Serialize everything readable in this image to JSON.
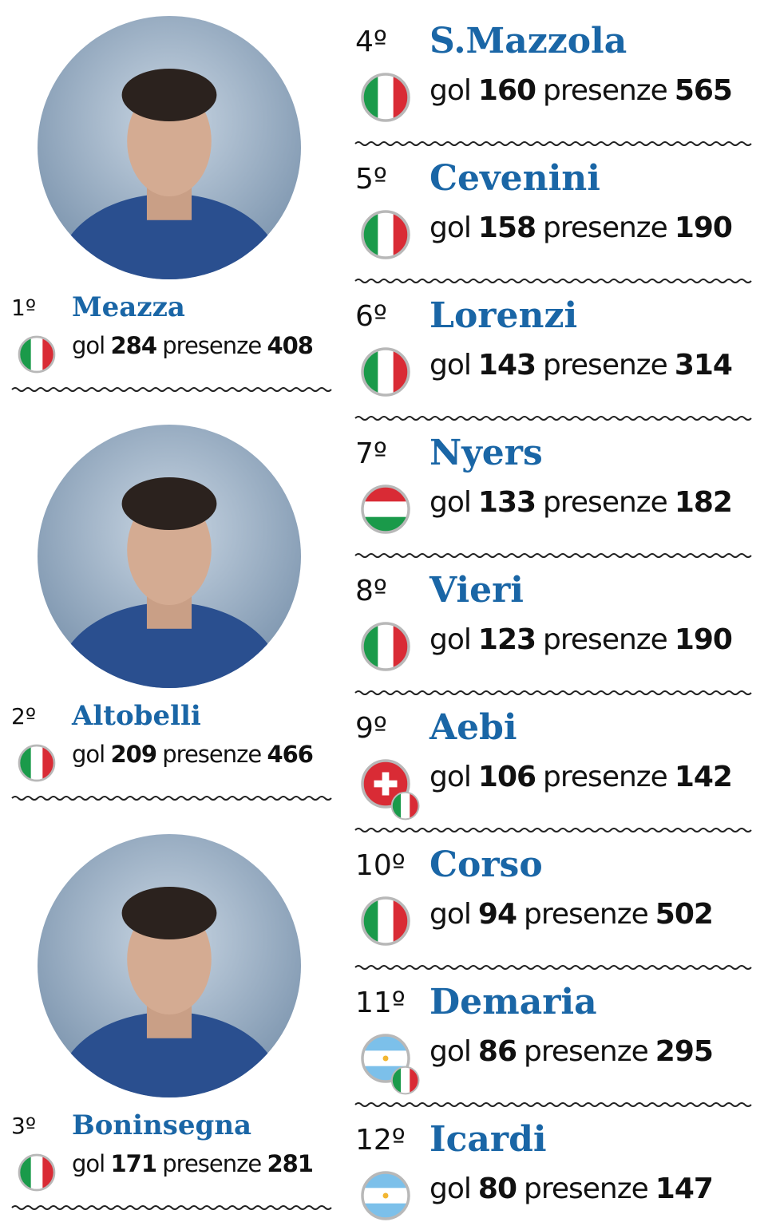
{
  "labels": {
    "gol": "gol",
    "presenze": "presenze"
  },
  "players": [
    {
      "rank": "1º",
      "name": "Meazza",
      "gol": 284,
      "presenze": 408,
      "flags": [
        "it"
      ]
    },
    {
      "rank": "2º",
      "name": "Altobelli",
      "gol": 209,
      "presenze": 466,
      "flags": [
        "it"
      ]
    },
    {
      "rank": "3º",
      "name": "Boninsegna",
      "gol": 171,
      "presenze": 281,
      "flags": [
        "it"
      ]
    },
    {
      "rank": "4º",
      "name": "S.Mazzola",
      "gol": 160,
      "presenze": 565,
      "flags": [
        "it"
      ]
    },
    {
      "rank": "5º",
      "name": "Cevenini",
      "gol": 158,
      "presenze": 190,
      "flags": [
        "it"
      ]
    },
    {
      "rank": "6º",
      "name": "Lorenzi",
      "gol": 143,
      "presenze": 314,
      "flags": [
        "it"
      ]
    },
    {
      "rank": "7º",
      "name": "Nyers",
      "gol": 133,
      "presenze": 182,
      "flags": [
        "hu"
      ]
    },
    {
      "rank": "8º",
      "name": "Vieri",
      "gol": 123,
      "presenze": 190,
      "flags": [
        "it"
      ]
    },
    {
      "rank": "9º",
      "name": "Aebi",
      "gol": 106,
      "presenze": 142,
      "flags": [
        "ch",
        "it"
      ]
    },
    {
      "rank": "10º",
      "name": "Corso",
      "gol": 94,
      "presenze": 502,
      "flags": [
        "it"
      ]
    },
    {
      "rank": "11º",
      "name": "Demaria",
      "gol": 86,
      "presenze": 295,
      "flags": [
        "ar",
        "it"
      ]
    },
    {
      "rank": "12º",
      "name": "Icardi",
      "gol": 80,
      "presenze": 147,
      "flags": [
        "ar"
      ]
    }
  ]
}
